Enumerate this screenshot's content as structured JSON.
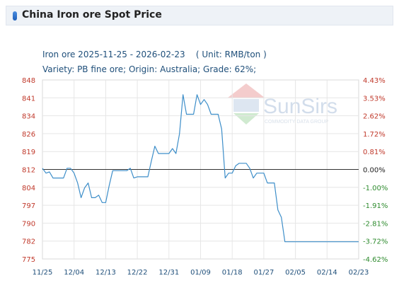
{
  "header": {
    "title": "China Iron ore Spot Price"
  },
  "subtitle": {
    "line1": "Iron ore 2025-11-25 - 2026-02-23    ( Unit: RMB/ton )",
    "line2": "Variety: PB fine ore; Origin: Australia; Grade: 62%;"
  },
  "watermark": {
    "brand": "SunSirs",
    "tagline": "COMMODITY DATA GROUP"
  },
  "colors": {
    "line": "#3d8ec9",
    "left_axis": "#c0392b",
    "pos_pct": "#c0392b",
    "neg_pct": "#2e8b2e",
    "zero_pct": "#222222",
    "x_axis": "#1f4f7a"
  },
  "chart_data": {
    "type": "line",
    "title": "",
    "xlabel": "",
    "ylabel": "",
    "ylim": [
      775,
      848
    ],
    "grid": true,
    "baseline_value": 812,
    "x_ticks": [
      "11/25",
      "12/04",
      "12/13",
      "12/22",
      "12/31",
      "01/09",
      "01/18",
      "01/27",
      "02/05",
      "02/14",
      "02/23"
    ],
    "y_ticks_left": [
      "848",
      "841",
      "834",
      "826",
      "819",
      "812",
      "804",
      "797",
      "790",
      "782",
      "775"
    ],
    "y_ticks_right": [
      "4.43%",
      "3.53%",
      "2.62%",
      "1.72%",
      "0.81%",
      "0.00%",
      "-1.00%",
      "-1.91%",
      "-2.81%",
      "-3.72%",
      "-4.62%"
    ],
    "series": [
      {
        "x": [
          0,
          1,
          2,
          3,
          4,
          5,
          6,
          7,
          8,
          9,
          10,
          11,
          12,
          13,
          14,
          15,
          16,
          17,
          18,
          19,
          20,
          21,
          22,
          23,
          24,
          25,
          26,
          27,
          28,
          29,
          30,
          31,
          32,
          33,
          34,
          35,
          36,
          37,
          38,
          39,
          40,
          41,
          42,
          43,
          44,
          45,
          46,
          47,
          48,
          49,
          50,
          51,
          52,
          53,
          54,
          55,
          56,
          57,
          58,
          59,
          60,
          61,
          62,
          63,
          64,
          65,
          66,
          67,
          68,
          69,
          70,
          71,
          72,
          73,
          74,
          75,
          76,
          77,
          78,
          79,
          80,
          81,
          82,
          83,
          84,
          85,
          86,
          87,
          88,
          89,
          90
        ],
        "y": [
          812,
          810,
          810.5,
          808,
          808,
          808,
          808,
          812,
          812,
          810,
          806,
          800,
          804,
          806,
          800,
          800,
          801,
          798,
          798,
          805,
          811,
          811,
          811,
          811,
          811,
          812,
          808,
          808.5,
          808.5,
          808.5,
          808.5,
          815,
          821,
          818,
          818,
          818,
          818,
          820,
          818,
          826,
          842,
          834,
          834,
          834,
          842,
          838,
          840,
          838,
          834,
          834,
          834,
          828,
          808,
          810,
          810,
          813,
          814,
          814,
          814,
          812,
          808,
          810,
          810,
          810,
          806,
          806,
          806,
          795,
          792,
          782,
          782,
          782,
          782,
          782,
          782,
          782,
          782,
          782,
          782,
          782,
          782,
          782,
          782,
          782,
          782,
          782,
          782,
          782,
          782,
          782,
          782
        ]
      }
    ]
  }
}
